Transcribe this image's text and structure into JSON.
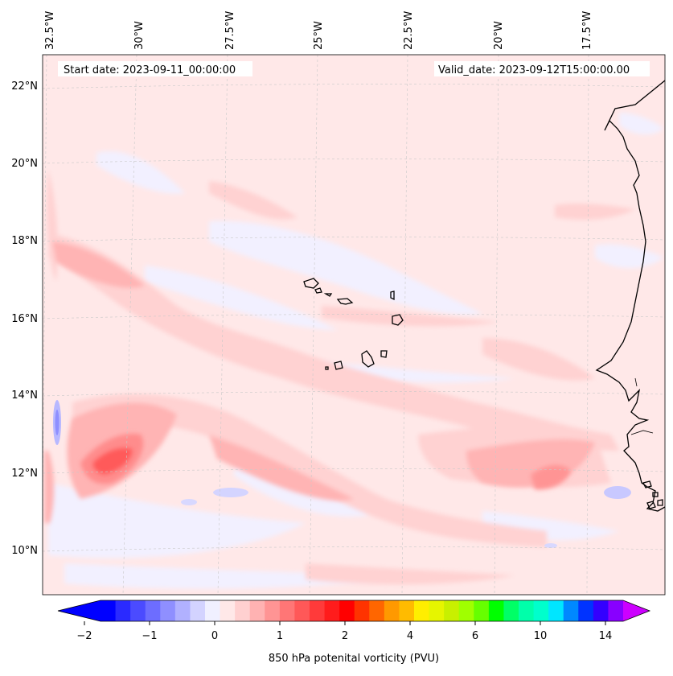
{
  "map": {
    "header": {
      "start_date": "Start date: 2023-09-11_00:00:00",
      "valid_date": "Valid_date: 2023-09-12T15:00:00.00"
    },
    "lon_labels": [
      "32.5°W",
      "30°W",
      "27.5°W",
      "25°W",
      "22.5°W",
      "20°W",
      "17.5°W"
    ],
    "lat_labels": [
      "22°N",
      "20°N",
      "18°N",
      "16°N",
      "14°N",
      "12°N",
      "10°N"
    ],
    "colorbar": {
      "label": "850 hPa potenital vorticity (PVU)",
      "ticks": [
        "−2",
        "−1",
        "0",
        "1",
        "2",
        "4",
        "6",
        "10",
        "14"
      ],
      "colors": [
        "#0000ff",
        "#2a2aff",
        "#4b4bff",
        "#6d6dff",
        "#8f8fff",
        "#b1b1ff",
        "#d3d3ff",
        "#f0f0ff",
        "#ffe8e8",
        "#ffd0d0",
        "#ffb2b2",
        "#ff9494",
        "#ff7676",
        "#ff5858",
        "#ff3a3a",
        "#ff1c1c",
        "#ff0000",
        "#ff3300",
        "#ff6600",
        "#ff9900",
        "#ffbb00",
        "#ffee00",
        "#e6f500",
        "#c8f000",
        "#a0ff00",
        "#66ff00",
        "#00ff00",
        "#00ff66",
        "#00ffaa",
        "#00ffcc",
        "#00e6ff",
        "#0088ff",
        "#0033ff",
        "#3300ff",
        "#8800ff"
      ],
      "under_color": "#0000ff",
      "over_color": "#cc00ff"
    },
    "field": {
      "background": "#ffe8e8",
      "coast_color": "#000000"
    }
  }
}
